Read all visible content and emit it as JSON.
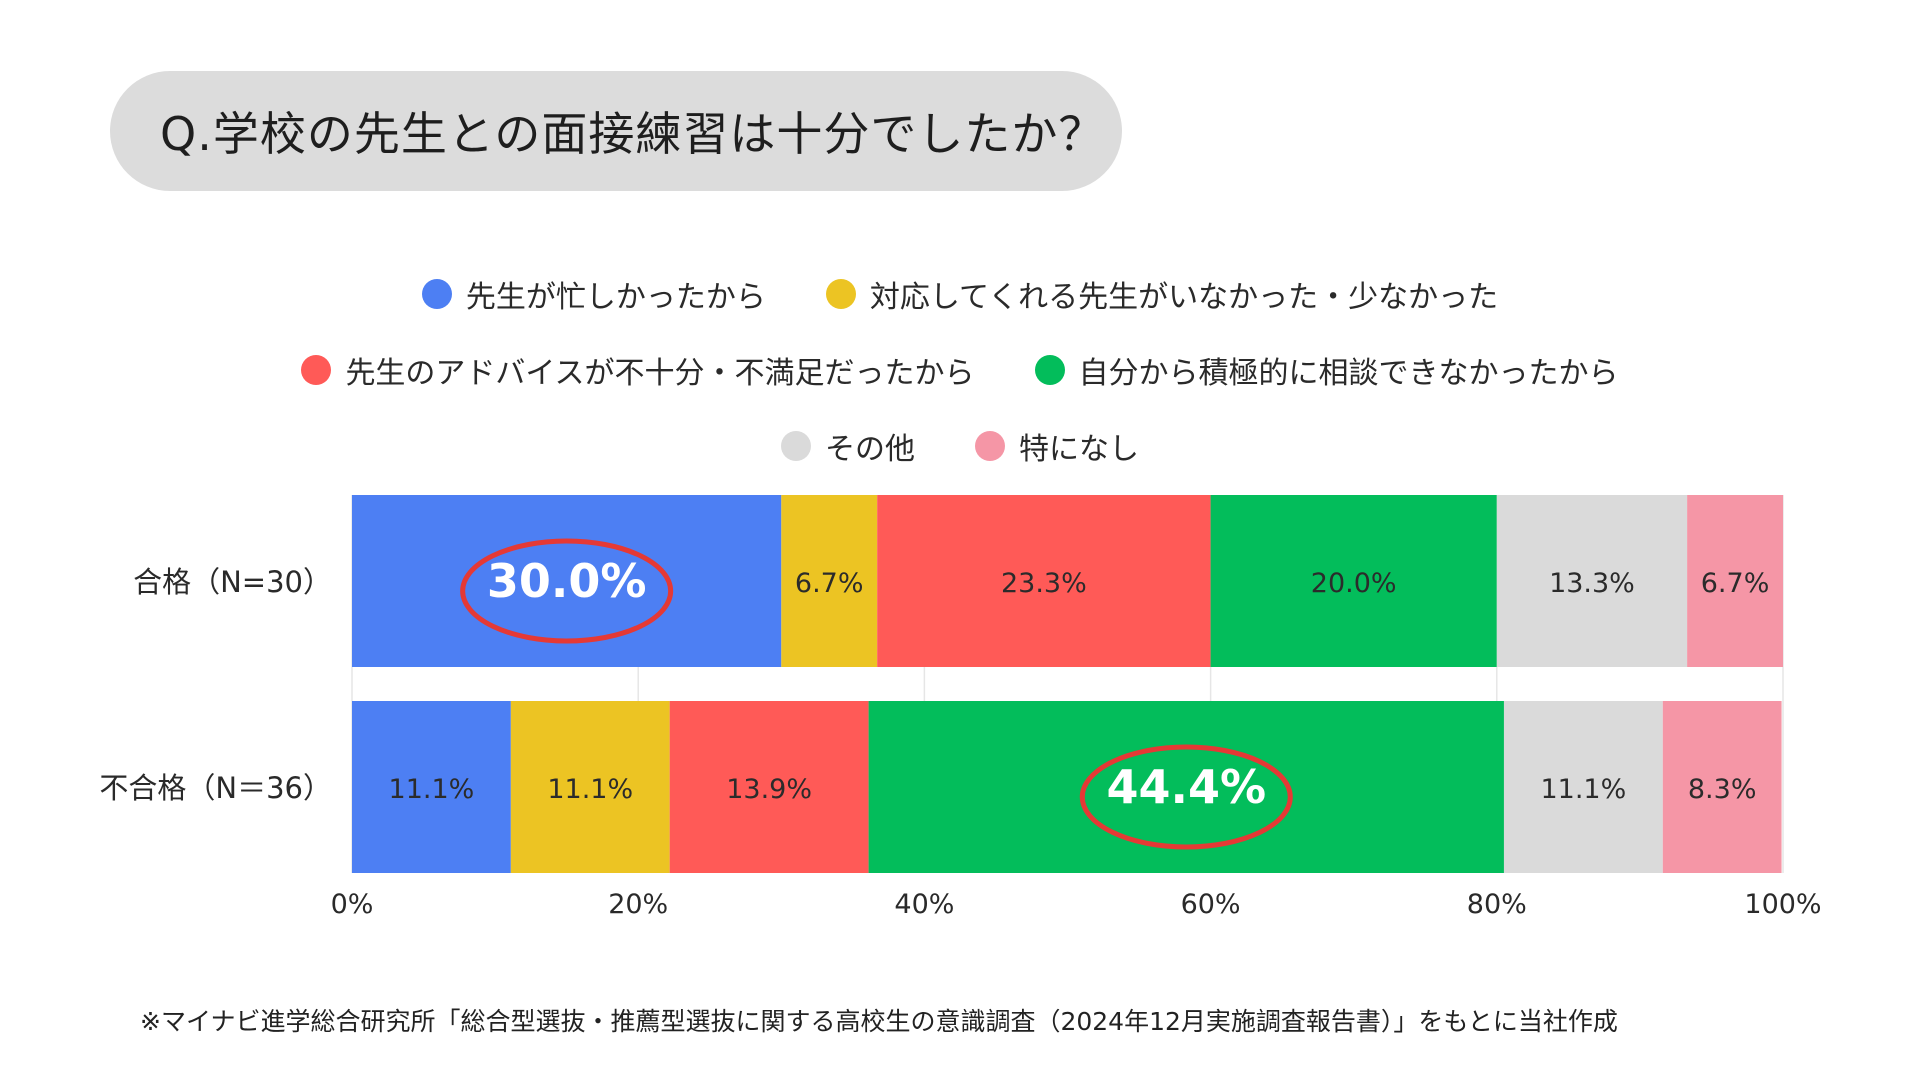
{
  "title": "Q.学校の先生との面接練習は十分でしたか？",
  "legend_rows": [
    [
      {
        "label": "先生が忙しかったから",
        "color": "#4d7ff3"
      },
      {
        "label": "対応してくれる先生がいなかった・少なかった",
        "color": "#ecc423"
      }
    ],
    [
      {
        "label": "先生のアドバイスが不十分・不満足だったから",
        "color": "#ff5a57"
      },
      {
        "label": "自分から積極的に相談できなかったから",
        "color": "#03bd5b"
      }
    ],
    [
      {
        "label": "その他",
        "color": "#dadada"
      },
      {
        "label": "特になし",
        "color": "#f596a6"
      }
    ]
  ],
  "chart_data": {
    "type": "bar",
    "orientation": "horizontal",
    "stacked": true,
    "categories": [
      "合格（N=30）",
      "不合格（N＝36）"
    ],
    "series": [
      {
        "name": "先生が忙しかったから",
        "color": "#4d7ff3",
        "values": [
          30.0,
          11.1
        ],
        "labels": [
          "30.0%",
          "11.1%"
        ]
      },
      {
        "name": "対応してくれる先生がいなかった・少なかった",
        "color": "#ecc423",
        "values": [
          6.7,
          11.1
        ],
        "labels": [
          "6.7%",
          "11.1%"
        ]
      },
      {
        "name": "先生のアドバイスが不十分・不満足だったから",
        "color": "#ff5a57",
        "values": [
          23.3,
          13.9
        ],
        "labels": [
          "23.3%",
          "13.9%"
        ]
      },
      {
        "name": "自分から積極的に相談できなかったから",
        "color": "#03bd5b",
        "values": [
          20.0,
          44.4
        ],
        "labels": [
          "20.0%",
          "44.4%"
        ]
      },
      {
        "name": "その他",
        "color": "#dadada",
        "values": [
          13.3,
          11.1
        ],
        "labels": [
          "13.3%",
          "11.1%"
        ]
      },
      {
        "name": "特になし",
        "color": "#f596a6",
        "values": [
          6.7,
          8.3
        ],
        "labels": [
          "6.7%",
          "8.3%"
        ]
      }
    ],
    "highlights": [
      {
        "category_index": 0,
        "series_index": 0,
        "circle_color": "#e53935"
      },
      {
        "category_index": 1,
        "series_index": 3,
        "circle_color": "#e53935"
      }
    ],
    "xlim": [
      0,
      100
    ],
    "xticks": [
      0,
      20,
      40,
      60,
      80,
      100
    ],
    "xtick_labels": [
      "0%",
      "20%",
      "40%",
      "60%",
      "80%",
      "100%"
    ],
    "grid": true,
    "legend_position": "top"
  },
  "footnote": "※マイナビ進学総合研究所「総合型選抜・推薦型選抜に関する高校生の意識調査（2024年12月実施調査報告書）」をもとに当社作成"
}
